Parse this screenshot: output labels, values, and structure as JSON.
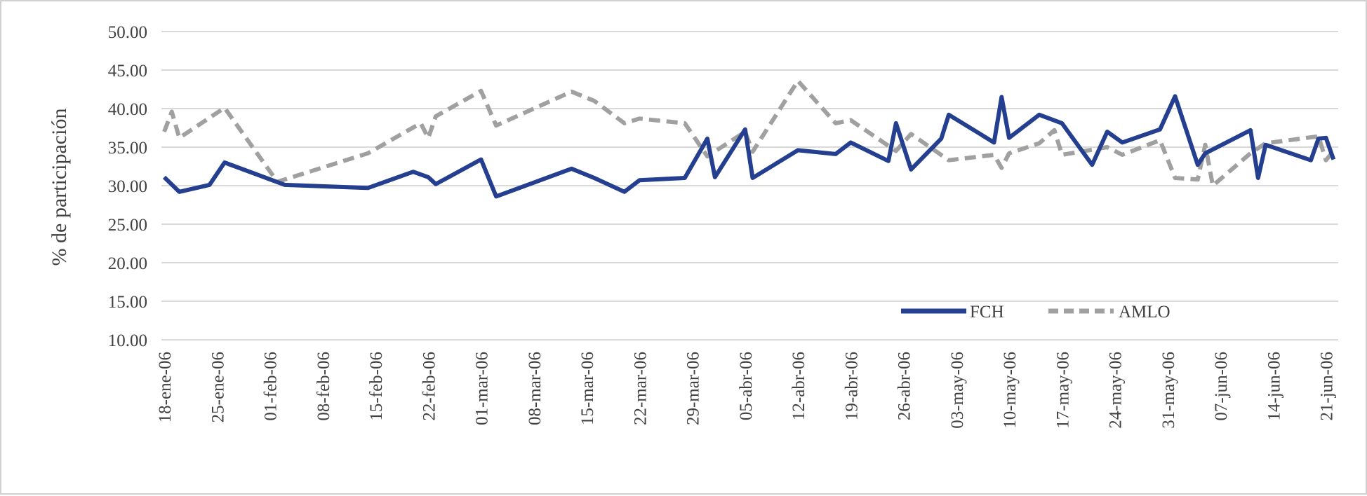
{
  "chart_data": {
    "type": "line",
    "title": "",
    "xlabel": "",
    "ylabel": "% de participación",
    "ylim": [
      10,
      50
    ],
    "yticks": [
      "10.00",
      "15.00",
      "20.00",
      "25.00",
      "30.00",
      "35.00",
      "40.00",
      "45.00",
      "50.00"
    ],
    "xtick_labels": [
      "18-ene-06",
      "25-ene-06",
      "01-feb-06",
      "08-feb-06",
      "15-feb-06",
      "22-feb-06",
      "01-mar-06",
      "08-mar-06",
      "15-mar-06",
      "22-mar-06",
      "29-mar-06",
      "05-abr-06",
      "12-abr-06",
      "19-abr-06",
      "26-abr-06",
      "03-may-06",
      "10-may-06",
      "17-may-06",
      "24-may-06",
      "31-may-06",
      "07-jun-06",
      "14-jun-06",
      "21-jun-06"
    ],
    "x_unit": "days since 18-ene-06",
    "grid": true,
    "legend_position": "bottom-right",
    "colors": {
      "FCH": "#243f8f",
      "AMLO": "#a0a0a0"
    },
    "series": [
      {
        "name": "FCH",
        "style": "solid",
        "points": [
          [
            0,
            31.1
          ],
          [
            2,
            29.2
          ],
          [
            6,
            30.1
          ],
          [
            8,
            33.0
          ],
          [
            16,
            30.1
          ],
          [
            27,
            29.7
          ],
          [
            33,
            31.8
          ],
          [
            35,
            31.1
          ],
          [
            36,
            30.2
          ],
          [
            42,
            33.4
          ],
          [
            44,
            28.6
          ],
          [
            54,
            32.2
          ],
          [
            57,
            31.0
          ],
          [
            61,
            29.2
          ],
          [
            63,
            30.7
          ],
          [
            69,
            31.0
          ],
          [
            72,
            36.1
          ],
          [
            73,
            31.1
          ],
          [
            77,
            37.3
          ],
          [
            78,
            31.0
          ],
          [
            84,
            34.6
          ],
          [
            89,
            34.1
          ],
          [
            91,
            35.6
          ],
          [
            96,
            33.2
          ],
          [
            97,
            38.1
          ],
          [
            99,
            32.1
          ],
          [
            103,
            36.1
          ],
          [
            104,
            39.2
          ],
          [
            110,
            35.6
          ],
          [
            111,
            41.5
          ],
          [
            112,
            36.2
          ],
          [
            116,
            39.2
          ],
          [
            119,
            38.1
          ],
          [
            123,
            32.7
          ],
          [
            125,
            37.0
          ],
          [
            127,
            35.6
          ],
          [
            132,
            37.3
          ],
          [
            134,
            41.6
          ],
          [
            137,
            32.7
          ],
          [
            138,
            34.2
          ],
          [
            144,
            37.2
          ],
          [
            145,
            31.0
          ],
          [
            146,
            35.3
          ],
          [
            152,
            33.3
          ],
          [
            153,
            36.1
          ],
          [
            154,
            36.2
          ],
          [
            155,
            33.4
          ]
        ]
      },
      {
        "name": "AMLO",
        "style": "dashed",
        "points": [
          [
            0,
            37.0
          ],
          [
            1,
            39.6
          ],
          [
            2,
            36.2
          ],
          [
            8,
            40.1
          ],
          [
            15,
            30.5
          ],
          [
            27,
            34.2
          ],
          [
            34,
            38.1
          ],
          [
            35,
            36.2
          ],
          [
            36,
            39.0
          ],
          [
            42,
            42.3
          ],
          [
            44,
            37.8
          ],
          [
            54,
            42.2
          ],
          [
            57,
            41.0
          ],
          [
            61,
            38.1
          ],
          [
            63,
            38.7
          ],
          [
            69,
            38.1
          ],
          [
            72,
            33.8
          ],
          [
            77,
            37.0
          ],
          [
            78,
            34.4
          ],
          [
            84,
            43.6
          ],
          [
            89,
            38.1
          ],
          [
            91,
            38.5
          ],
          [
            97,
            34.5
          ],
          [
            99,
            36.7
          ],
          [
            104,
            33.3
          ],
          [
            110,
            34.0
          ],
          [
            111,
            32.3
          ],
          [
            112,
            34.2
          ],
          [
            116,
            35.5
          ],
          [
            118,
            37.2
          ],
          [
            119,
            34.0
          ],
          [
            125,
            35.0
          ],
          [
            127,
            34.0
          ],
          [
            132,
            35.9
          ],
          [
            134,
            31.0
          ],
          [
            137,
            30.8
          ],
          [
            138,
            35.3
          ],
          [
            139,
            30.0
          ],
          [
            144,
            34.2
          ],
          [
            146,
            35.5
          ],
          [
            153,
            36.4
          ],
          [
            154,
            33.3
          ],
          [
            155,
            34.5
          ]
        ]
      }
    ]
  }
}
